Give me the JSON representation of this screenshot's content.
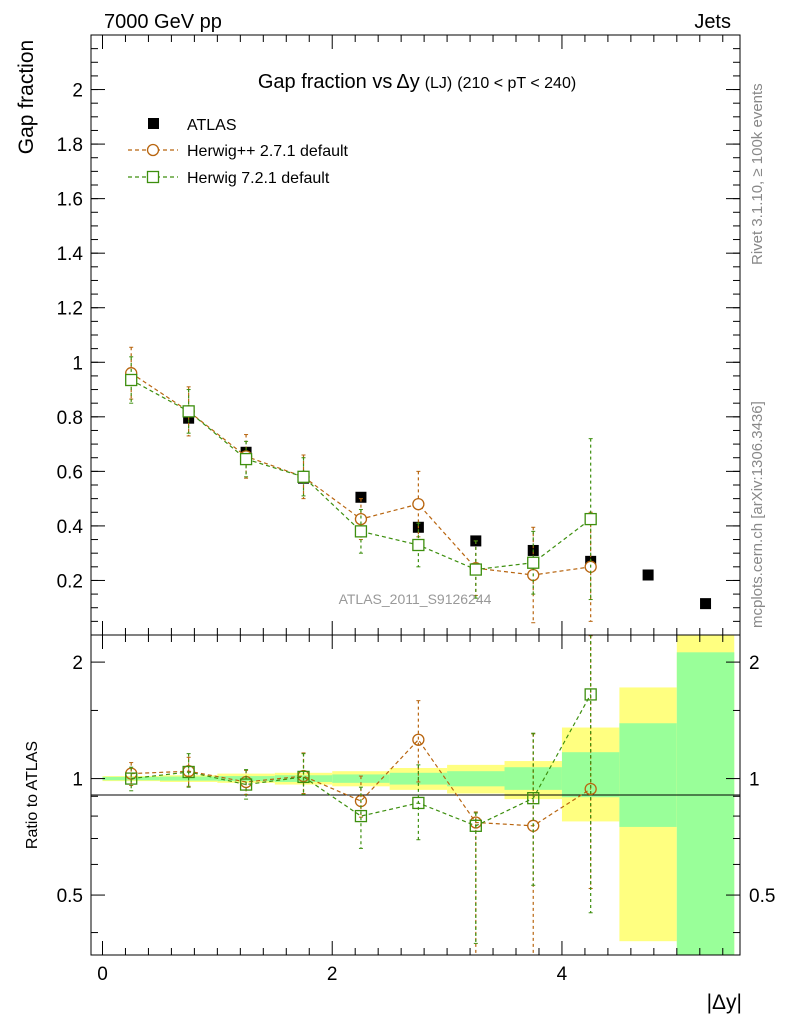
{
  "header": {
    "left": "7000 GeV pp",
    "right": "Jets"
  },
  "side_labels": {
    "rivet": "Rivet 3.1.10, ≥ 100k events",
    "mcplots": "mcplots.cern.ch [arXiv:1306.3436]"
  },
  "chart_data": [
    {
      "type": "scatter",
      "panel": "main",
      "title_main": "Gap fraction vs",
      "title_sym": "Δy",
      "title_sub": "(LJ)",
      "title_range": "(210 < pT < 240)",
      "ylabel": "Gap fraction",
      "watermark": "ATLAS_2011_S9126244",
      "xlim": [
        -0.1,
        5.55
      ],
      "ylim": [
        0,
        2.2
      ],
      "y_ticks": [
        {
          "v": 0.2,
          "label": "0.2"
        },
        {
          "v": 0.4,
          "label": "0.4"
        },
        {
          "v": 0.6,
          "label": "0.6"
        },
        {
          "v": 0.8,
          "label": "0.8"
        },
        {
          "v": 1.0,
          "label": "1"
        },
        {
          "v": 1.2,
          "label": "1.2"
        },
        {
          "v": 1.4,
          "label": "1.4"
        },
        {
          "v": 1.6,
          "label": "1.6"
        },
        {
          "v": 1.8,
          "label": "1.8"
        },
        {
          "v": 2.0,
          "label": "2"
        }
      ],
      "legend_position": "top-left",
      "series": [
        {
          "name": "ATLAS",
          "marker": "filled-square",
          "color": "#000000",
          "x": [
            0.25,
            0.75,
            1.25,
            1.75,
            2.25,
            2.75,
            3.25,
            3.75,
            4.25,
            4.75,
            5.25
          ],
          "y": [
            0.935,
            0.795,
            0.67,
            0.575,
            0.505,
            0.395,
            0.345,
            0.31,
            0.27,
            0.22,
            0.115
          ]
        },
        {
          "name": "Herwig++ 2.7.1 default",
          "marker": "open-circle",
          "color": "#b8650f",
          "x": [
            0.25,
            0.75,
            1.25,
            1.75,
            2.25,
            2.75,
            3.25,
            3.75,
            4.25
          ],
          "y": [
            0.96,
            0.82,
            0.655,
            0.58,
            0.425,
            0.48,
            0.245,
            0.22,
            0.25
          ],
          "err": [
            0.095,
            0.09,
            0.08,
            0.08,
            0.075,
            0.12,
            0.1,
            0.175,
            0.2
          ]
        },
        {
          "name": "Herwig 7.2.1 default",
          "marker": "open-square",
          "color": "#3d8f0e",
          "x": [
            0.25,
            0.75,
            1.25,
            1.75,
            2.25,
            2.75,
            3.25,
            3.75,
            4.25
          ],
          "y": [
            0.935,
            0.82,
            0.645,
            0.58,
            0.38,
            0.33,
            0.24,
            0.265,
            0.425
          ],
          "err": [
            0.085,
            0.08,
            0.065,
            0.07,
            0.08,
            0.08,
            0.105,
            0.115,
            0.295
          ]
        }
      ]
    },
    {
      "type": "scatter",
      "panel": "ratio",
      "ylabel": "Ratio to ATLAS",
      "xlabel": "|Δy|",
      "xlim": [
        -0.1,
        5.55
      ],
      "ylim": [
        0.35,
        2.35
      ],
      "log_y": true,
      "x_ticks": [
        {
          "v": 0,
          "label": "0"
        },
        {
          "v": 2,
          "label": "2"
        },
        {
          "v": 4,
          "label": "4"
        }
      ],
      "y_ticks": [
        {
          "v": 0.5,
          "label": "0.5"
        },
        {
          "v": 1,
          "label": "1"
        },
        {
          "v": 2,
          "label": "2"
        }
      ],
      "reference_line": 1,
      "bands": {
        "bins": [
          [
            0,
            0.5
          ],
          [
            0.5,
            1
          ],
          [
            1,
            1.5
          ],
          [
            1.5,
            2
          ],
          [
            2,
            2.5
          ],
          [
            2.5,
            3
          ],
          [
            3,
            3.5
          ],
          [
            3.5,
            4
          ],
          [
            4,
            4.5
          ],
          [
            4.5,
            5
          ],
          [
            5,
            5.5
          ]
        ],
        "total_lo": [
          0.985,
          0.98,
          0.975,
          0.965,
          0.955,
          0.935,
          0.915,
          0.885,
          0.775,
          0.38,
          0.33
        ],
        "total_hi": [
          1.015,
          1.02,
          1.03,
          1.035,
          1.045,
          1.065,
          1.085,
          1.11,
          1.355,
          1.72,
          2.35
        ],
        "stat_lo": [
          0.99,
          0.988,
          0.985,
          0.98,
          0.975,
          0.965,
          0.955,
          0.935,
          0.895,
          0.75,
          0.33
        ],
        "stat_hi": [
          1.01,
          1.012,
          1.015,
          1.02,
          1.025,
          1.035,
          1.045,
          1.07,
          1.17,
          1.39,
          2.12
        ]
      },
      "band_colors": {
        "total": "#ffff80",
        "stat": "#99ff99"
      },
      "series": [
        {
          "name": "Herwig++ 2.7.1 default",
          "x": [
            0.25,
            0.75,
            1.25,
            1.75,
            2.25,
            2.75,
            3.25,
            3.75,
            4.25
          ],
          "y": [
            1.03,
            1.045,
            0.98,
            1.015,
            0.875,
            1.26,
            0.77,
            0.755,
            0.94
          ],
          "err_lo": [
            0.07,
            0.09,
            0.07,
            0.1,
            0.08,
            0.28,
            0.42,
            0.42,
            0.42
          ],
          "err_hi": [
            0.07,
            0.09,
            0.07,
            0.15,
            0.14,
            0.33,
            0.05,
            0.55,
            1.4
          ]
        },
        {
          "name": "Herwig 7.2.1 default",
          "x": [
            0.25,
            0.75,
            1.25,
            1.75,
            2.25,
            2.75,
            3.25,
            3.75,
            4.25
          ],
          "y": [
            1.0,
            1.04,
            0.965,
            1.01,
            0.8,
            0.865,
            0.755,
            0.89,
            1.65
          ],
          "err_lo": [
            0.07,
            0.09,
            0.08,
            0.1,
            0.14,
            0.17,
            0.38,
            0.36,
            1.2
          ],
          "err_hi": [
            0.07,
            0.12,
            0.09,
            0.15,
            0.15,
            0.22,
            0.06,
            0.42,
            0.7
          ]
        }
      ]
    }
  ]
}
